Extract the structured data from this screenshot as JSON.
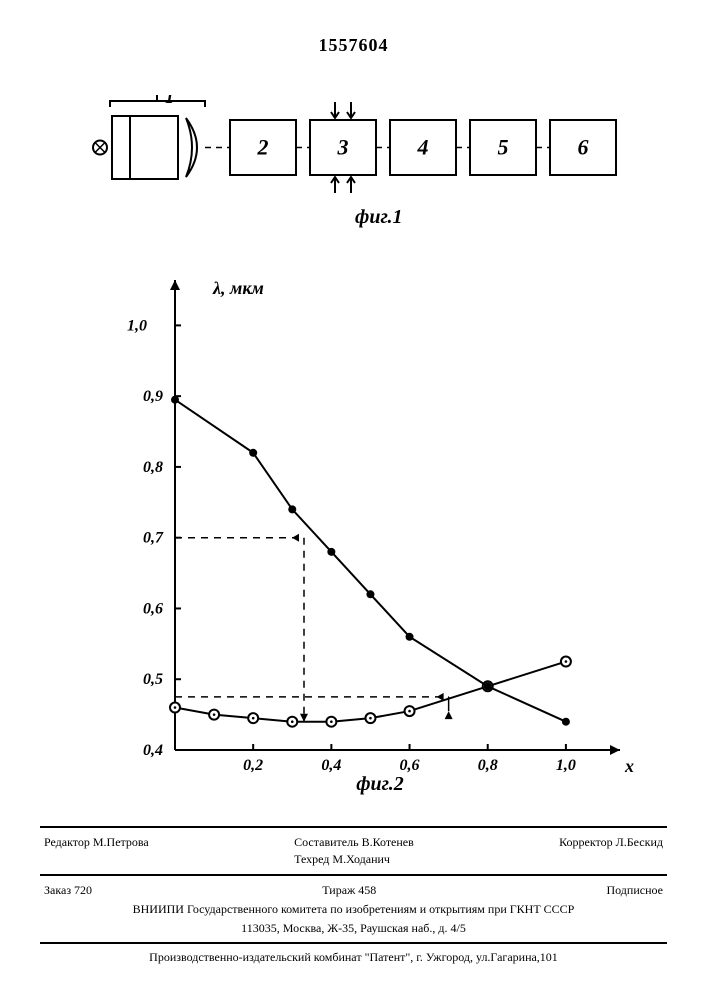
{
  "document_number": "1557604",
  "fig1": {
    "label": "фиг.1",
    "bracket_label": "1",
    "blocks": [
      "2",
      "3",
      "4",
      "5",
      "6"
    ],
    "stroke_color": "#000000",
    "stroke_width": 2,
    "fill": "#ffffff"
  },
  "fig2": {
    "label": "фиг.2",
    "y_axis_label": "λ, мкм",
    "x_axis_label": "x",
    "xlim": [
      0,
      1.1
    ],
    "ylim": [
      0.4,
      1.05
    ],
    "x_ticks": [
      0.2,
      0.4,
      0.6,
      0.8,
      1.0
    ],
    "x_tick_labels": [
      "0,2",
      "0,4",
      "0,6",
      "0,8",
      "1,0"
    ],
    "y_ticks": [
      0.4,
      0.5,
      0.6,
      0.7,
      0.8,
      0.9,
      1.0
    ],
    "y_tick_labels": [
      "0,4",
      "0,5",
      "0,6",
      "0,7",
      "0,8",
      "0,9",
      "1,0"
    ],
    "y_tick_label_1_0_offset": true,
    "series_filled": {
      "marker": "filled-circle",
      "points": [
        {
          "x": 0.0,
          "y": 0.895
        },
        {
          "x": 0.2,
          "y": 0.82
        },
        {
          "x": 0.3,
          "y": 0.74
        },
        {
          "x": 0.4,
          "y": 0.68
        },
        {
          "x": 0.5,
          "y": 0.62
        },
        {
          "x": 0.6,
          "y": 0.56
        },
        {
          "x": 0.8,
          "y": 0.49
        },
        {
          "x": 1.0,
          "y": 0.44
        }
      ],
      "marker_radius": 4,
      "line_width": 2,
      "color": "#000000"
    },
    "series_open": {
      "marker": "open-circle",
      "points": [
        {
          "x": 0.0,
          "y": 0.46
        },
        {
          "x": 0.1,
          "y": 0.45
        },
        {
          "x": 0.2,
          "y": 0.445
        },
        {
          "x": 0.3,
          "y": 0.44
        },
        {
          "x": 0.4,
          "y": 0.44
        },
        {
          "x": 0.5,
          "y": 0.445
        },
        {
          "x": 0.6,
          "y": 0.455
        },
        {
          "x": 0.8,
          "y": 0.49
        },
        {
          "x": 1.0,
          "y": 0.525
        }
      ],
      "marker_radius": 5,
      "line_width": 2,
      "color": "#000000"
    },
    "guides": [
      {
        "from_y": 0.7,
        "to_x": 0.33,
        "then_down_to_y": 0.44
      },
      {
        "from_y": 0.475,
        "to_x": 0.7,
        "arrow_up": 0.455
      }
    ],
    "axis_color": "#000000",
    "axis_width": 2,
    "tick_len": 6,
    "font_size_axis": 16,
    "font_size_label": 18
  },
  "footer": {
    "editor_label": "Редактор",
    "editor_name": "М.Петрова",
    "compiler_label": "Составитель",
    "compiler_name": "В.Котенев",
    "techred_label": "Техред",
    "techred_name": "М.Ходанич",
    "corrector_label": "Корректор",
    "corrector_name": "Л.Бескид",
    "order": "Заказ 720",
    "tirazh": "Тираж 458",
    "subscribed": "Подписное",
    "org_line1": "ВНИИПИ Государственного комитета по изобретениям и открытиям при ГКНТ СССР",
    "org_line2": "113035, Москва, Ж-35, Раушская наб., д. 4/5",
    "prod_line": "Производственно-издательский комбинат \"Патент\", г. Ужгород, ул.Гагарина,101"
  }
}
